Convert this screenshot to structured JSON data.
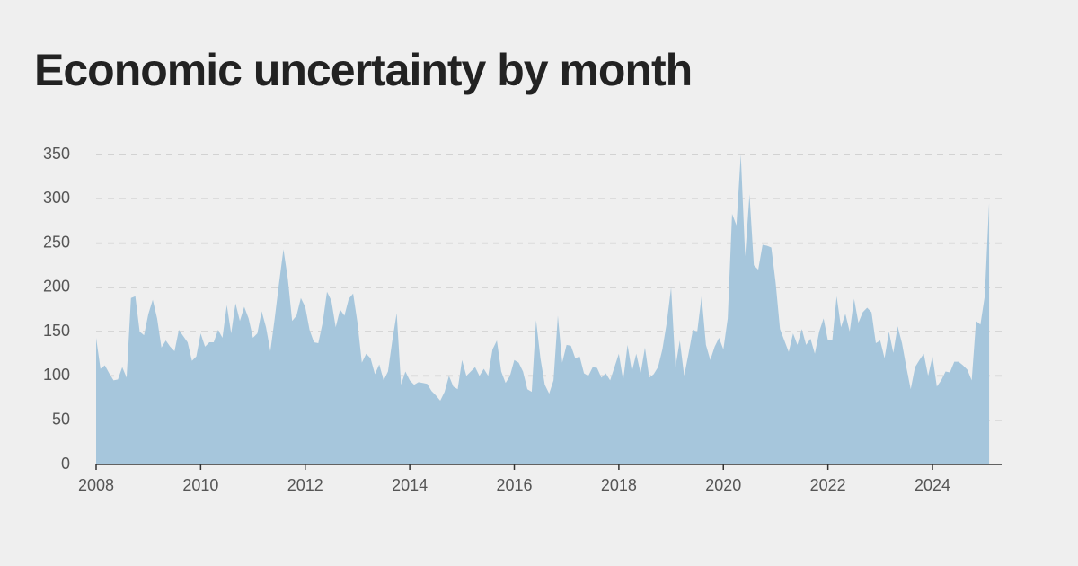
{
  "chart_data": {
    "type": "area",
    "title": "Economic uncertainty by month",
    "categories": [
      "2008",
      null,
      null,
      null,
      null,
      null,
      null,
      null,
      null,
      null,
      null,
      null,
      null,
      null,
      null,
      null,
      null,
      null,
      null,
      null,
      null,
      null,
      null,
      null,
      "2010",
      null,
      null,
      null,
      null,
      null,
      null,
      null,
      null,
      null,
      null,
      null,
      null,
      null,
      null,
      null,
      null,
      null,
      null,
      null,
      null,
      null,
      null,
      null,
      "2012",
      null,
      null,
      null,
      null,
      null,
      null,
      null,
      null,
      null,
      null,
      null,
      null,
      null,
      null,
      null,
      null,
      null,
      null,
      null,
      null,
      null,
      null,
      null,
      "2014",
      null,
      null,
      null,
      null,
      null,
      null,
      null,
      null,
      null,
      null,
      null,
      null,
      null,
      null,
      null,
      null,
      null,
      null,
      null,
      null,
      null,
      null,
      null,
      "2016",
      null,
      null,
      null,
      null,
      null,
      null,
      null,
      null,
      null,
      null,
      null,
      null,
      null,
      null,
      null,
      null,
      null,
      null,
      null,
      null,
      null,
      null,
      null,
      "2018",
      null,
      null,
      null,
      null,
      null,
      null,
      null,
      null,
      null,
      null,
      null,
      null,
      null,
      null,
      null,
      null,
      null,
      null,
      null,
      null,
      null,
      null,
      null,
      "2020",
      null,
      null,
      null,
      null,
      null,
      null,
      null,
      null,
      null,
      null,
      null,
      null,
      null,
      null,
      null,
      null,
      null,
      null,
      null,
      null,
      null,
      null,
      null,
      "2022",
      null,
      null,
      null,
      null,
      null,
      null,
      null,
      null,
      null,
      null,
      null,
      null,
      null,
      null,
      null,
      null,
      null,
      null,
      null,
      null,
      null,
      null,
      null,
      "2024",
      null,
      null,
      null,
      null,
      null,
      null,
      null,
      null,
      null,
      null,
      null,
      null,
      null
    ],
    "values": [
      143,
      108,
      112,
      103,
      95,
      96,
      110,
      98,
      188,
      190,
      150,
      146,
      170,
      186,
      165,
      132,
      140,
      133,
      128,
      152,
      145,
      138,
      117,
      122,
      148,
      133,
      138,
      138,
      152,
      143,
      180,
      148,
      182,
      162,
      178,
      165,
      143,
      148,
      173,
      155,
      128,
      165,
      205,
      243,
      210,
      162,
      168,
      188,
      178,
      152,
      138,
      137,
      160,
      195,
      185,
      155,
      175,
      168,
      187,
      193,
      160,
      115,
      125,
      120,
      102,
      113,
      95,
      105,
      140,
      171,
      90,
      105,
      95,
      90,
      93,
      92,
      91,
      83,
      78,
      72,
      82,
      100,
      88,
      85,
      118,
      100,
      105,
      110,
      100,
      108,
      100,
      130,
      140,
      105,
      92,
      100,
      118,
      115,
      105,
      85,
      82,
      163,
      120,
      90,
      80,
      95,
      168,
      115,
      135,
      134,
      120,
      122,
      103,
      100,
      110,
      109,
      98,
      103,
      95,
      110,
      125,
      95,
      135,
      105,
      125,
      103,
      132,
      98,
      102,
      110,
      130,
      160,
      200,
      110,
      140,
      100,
      125,
      152,
      150,
      190,
      135,
      118,
      133,
      143,
      130,
      165,
      283,
      270,
      350,
      235,
      305,
      225,
      220,
      248,
      247,
      245,
      205,
      153,
      140,
      127,
      148,
      135,
      153,
      135,
      142,
      125,
      150,
      165,
      140,
      140,
      190,
      155,
      170,
      150,
      187,
      160,
      172,
      177,
      172,
      137,
      140,
      120,
      150,
      126,
      156,
      137,
      110,
      85,
      110,
      118,
      125,
      100,
      122,
      88,
      95,
      105,
      104,
      116,
      116,
      112,
      107,
      95,
      162,
      158,
      190,
      295
    ],
    "color": "#a6c6dc",
    "ylim": [
      0,
      350
    ],
    "yticks": [
      0,
      50,
      100,
      150,
      200,
      250,
      300,
      350
    ],
    "grid": true
  }
}
